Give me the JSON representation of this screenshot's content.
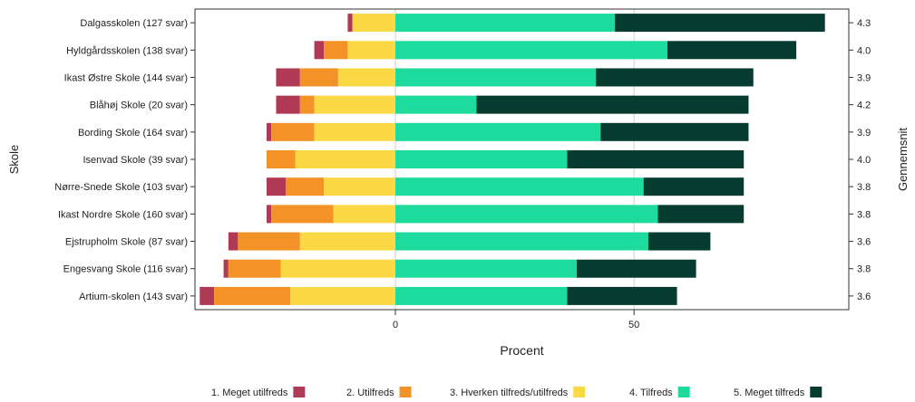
{
  "chart_data": {
    "type": "bar",
    "orientation": "horizontal",
    "stacked": "diverging",
    "ylabel_left": "Skole",
    "ylabel_right": "Gennemsnit",
    "xlabel": "Procent",
    "xticks": [
      "0",
      "50"
    ],
    "xlim": [
      -42,
      95
    ],
    "categories": [
      "Dalgasskolen (127 svar)",
      "Hyldgårdsskolen (138 svar)",
      "Ikast Østre Skole (144 svar)",
      "Blåhøj Skole (20 svar)",
      "Bording Skole (164 svar)",
      "Isenvad Skole (39 svar)",
      "Nørre-Snede Skole (103 svar)",
      "Ikast Nordre Skole (160 svar)",
      "Ejstrupholm Skole (87 svar)",
      "Engesvang Skole (116 svar)",
      "Artium-skolen (143 svar)"
    ],
    "averages": [
      "4.3",
      "4.0",
      "3.9",
      "4.2",
      "3.9",
      "4.0",
      "3.8",
      "3.8",
      "3.6",
      "3.8",
      "3.6"
    ],
    "series": [
      {
        "name": "1. Meget utilfreds",
        "color": "#b03a55",
        "values": [
          1,
          2,
          5,
          5,
          1,
          0,
          4,
          1,
          2,
          1,
          3
        ]
      },
      {
        "name": "2. Utilfreds",
        "color": "#f39226",
        "values": [
          0,
          5,
          8,
          3,
          9,
          6,
          8,
          13,
          13,
          11,
          16
        ]
      },
      {
        "name": "3. Hverken tilfreds/utilfreds",
        "color": "#fbd945",
        "values": [
          9,
          10,
          12,
          17,
          17,
          21,
          15,
          13,
          20,
          24,
          22
        ]
      },
      {
        "name": "4. Tilfreds",
        "color": "#1ddb9c",
        "values": [
          46,
          57,
          42,
          17,
          43,
          36,
          52,
          55,
          53,
          38,
          36
        ]
      },
      {
        "name": "5. Meget tilfreds",
        "color": "#053c2f",
        "values": [
          44,
          27,
          33,
          57,
          31,
          37,
          21,
          18,
          13,
          25,
          23
        ]
      }
    ],
    "legend_position": "bottom"
  }
}
